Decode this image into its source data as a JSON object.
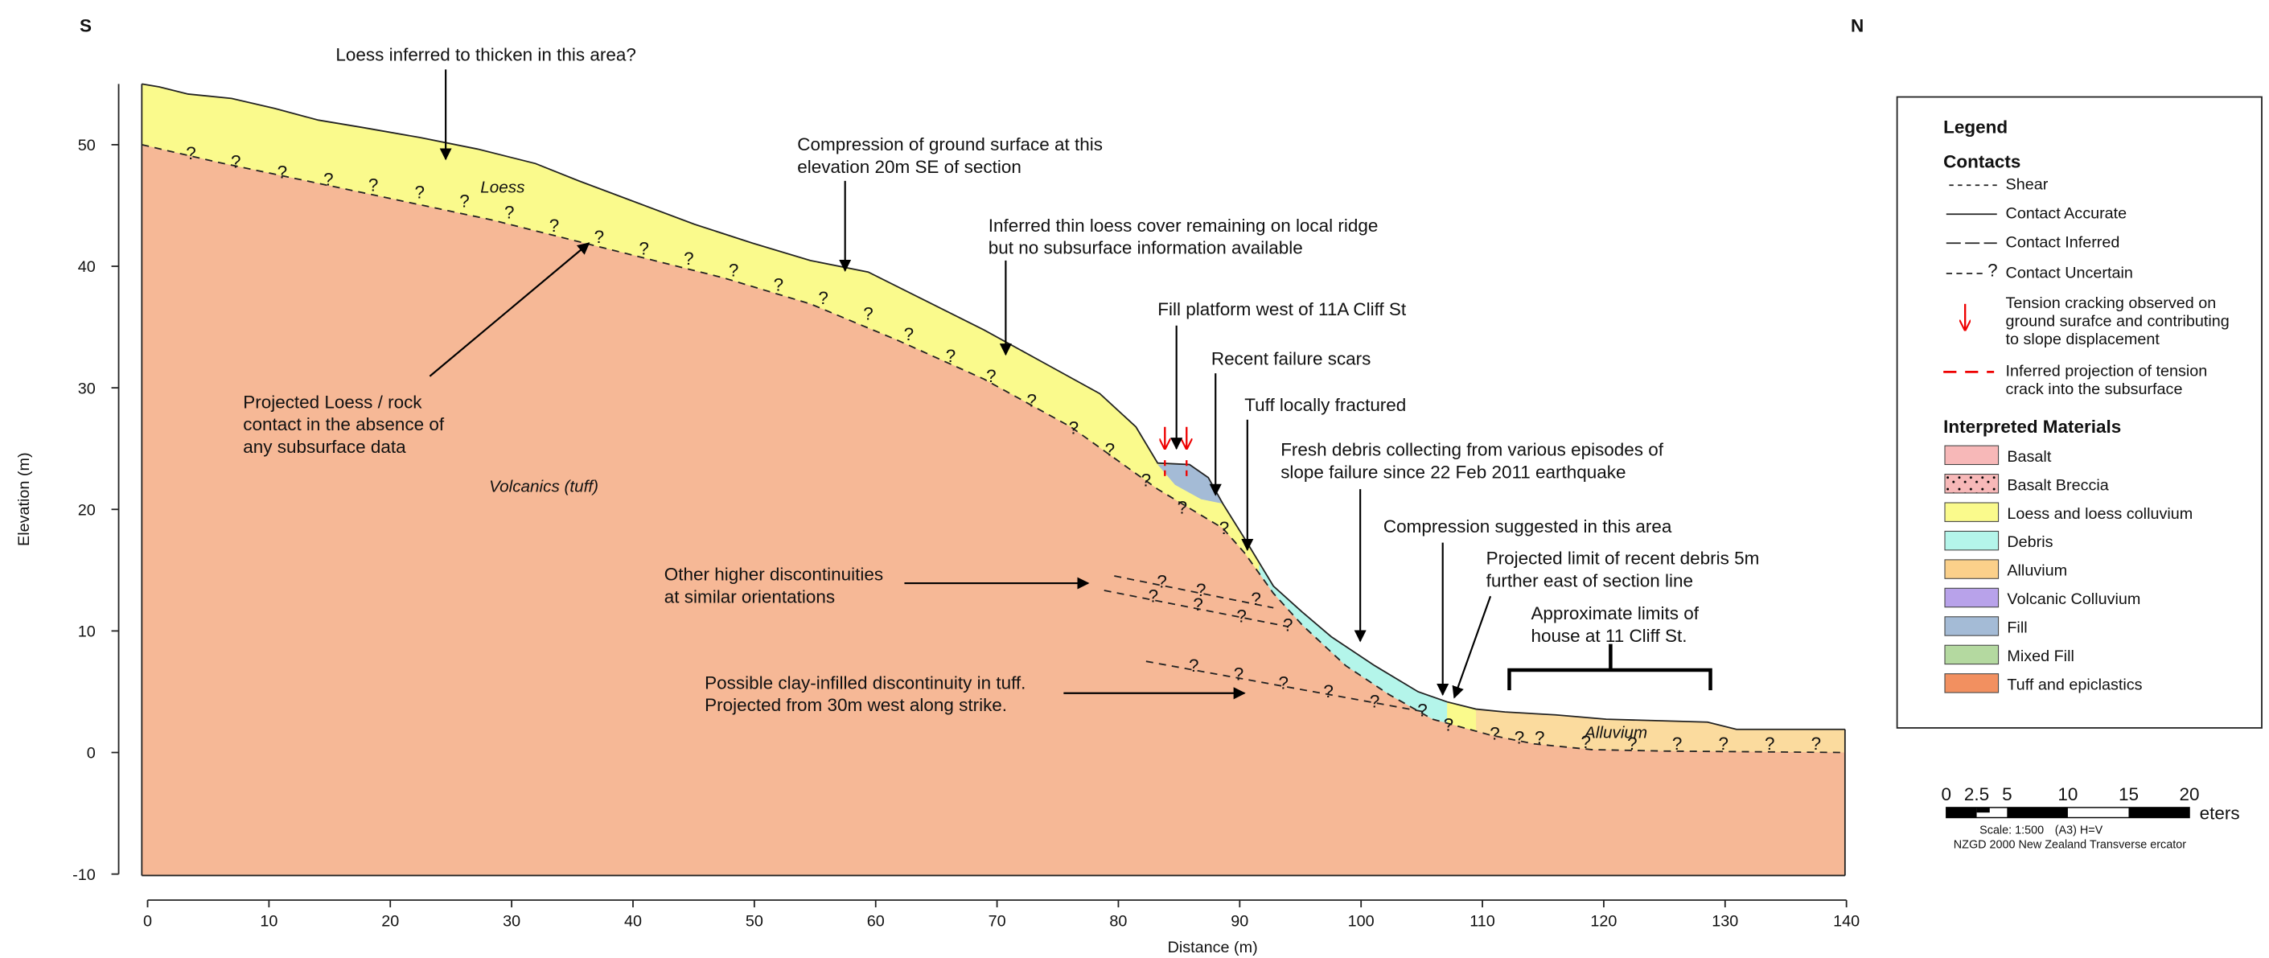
{
  "orientation": {
    "left": "S",
    "right": "N"
  },
  "axes": {
    "x_label": "Distance (m)",
    "y_label": "Elevation (m)",
    "xticks": [
      0,
      10,
      20,
      30,
      40,
      50,
      60,
      70,
      80,
      90,
      100,
      110,
      120,
      130,
      140
    ],
    "yticks": [
      50,
      40,
      30,
      20,
      10,
      0,
      -10
    ]
  },
  "unit_labels": {
    "loess": "Loess",
    "volcanics": "Volcanics (tuff)",
    "alluvium": "Alluvium"
  },
  "annotations": [
    {
      "lines": [
        "Loess inferred to thicken in this area?"
      ]
    },
    {
      "lines": [
        "Compression of ground surface at this",
        "elevation 20m SE of section"
      ]
    },
    {
      "lines": [
        "Inferred thin loess cover remaining on local ridge",
        "but no subsurface information available"
      ]
    },
    {
      "lines": [
        "Fill platform west of 11A Cliff St"
      ]
    },
    {
      "lines": [
        "Recent failure scars"
      ]
    },
    {
      "lines": [
        "Tuff locally fractured"
      ]
    },
    {
      "lines": [
        "Fresh debris collecting from various episodes of",
        "slope failure since 22 Feb 2011 earthquake"
      ]
    },
    {
      "lines": [
        "Compression suggested in this area"
      ]
    },
    {
      "lines": [
        "Projected limit of recent debris 5m",
        "further east of section line"
      ]
    },
    {
      "lines": [
        "Approximate limits of",
        "house at 11 Cliff St."
      ]
    },
    {
      "lines": [
        "Projected Loess / rock",
        "contact in the absence of",
        "any subsurface data"
      ]
    },
    {
      "lines": [
        "Other higher discontinuities",
        "at similar orientations"
      ]
    },
    {
      "lines": [
        "Possible clay-infilled discontinuity in tuff.",
        "Projected from 30m west along strike."
      ]
    }
  ],
  "symbols": {
    "uncertain": "?"
  },
  "legend": {
    "title": "Legend",
    "contacts_title": "Contacts",
    "contacts": [
      {
        "lines": [
          "Shear"
        ]
      },
      {
        "lines": [
          "Contact Accurate"
        ]
      },
      {
        "lines": [
          "Contact Inferred"
        ]
      },
      {
        "lines": [
          "Contact Uncertain"
        ]
      },
      {
        "lines": [
          "Tension cracking observed on",
          "ground surafce and contributing",
          "to slope displacement"
        ]
      },
      {
        "lines": [
          "Inferred projection of tension",
          "crack into the subsurface"
        ]
      }
    ],
    "materials_title": "Interpreted Materials",
    "materials": [
      {
        "name": "Basalt",
        "color": "#f7b8b8"
      },
      {
        "name": "Basalt Breccia",
        "color": "#f7b8b8"
      },
      {
        "name": "Loess  and loess colluvium",
        "color": "#fafa8c"
      },
      {
        "name": "Debris",
        "color": "#b4f5ea"
      },
      {
        "name": "Alluvium",
        "color": "#fbd08a"
      },
      {
        "name": "Volcanic Colluvium",
        "color": "#b8a2ea"
      },
      {
        "name": "Fill",
        "color": "#a4bbd6"
      },
      {
        "name": "Mixed Fill",
        "color": "#b4d9a0"
      },
      {
        "name": "Tuff and epiclastics",
        "color": "#f29060"
      }
    ]
  },
  "scale_bar": {
    "ticks": [
      0,
      2.5,
      5,
      10,
      15,
      20
    ],
    "unit": "eters",
    "scale": "Scale: 1:500",
    "paper": "(A3) H=V",
    "datum": "NZGD 2000 New Zealand Transverse  ercator"
  }
}
